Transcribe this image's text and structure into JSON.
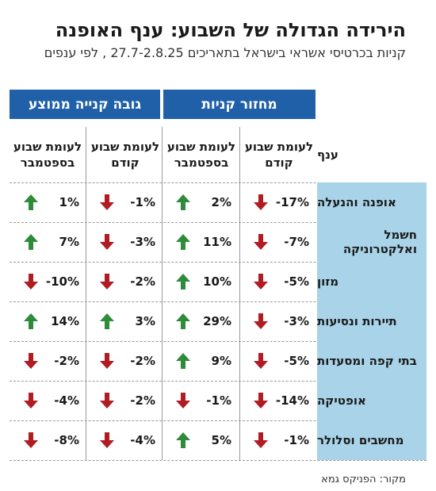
{
  "title": "הירידה הגדולה של השבוע: ענף האופנה",
  "subtitle": "קניות בכרטיסי אשראי בישראל בתאריכים 27.7-2.8.25 , לפי ענפים",
  "groups": {
    "purchase_turnover": "מחזור קניות",
    "avg_purchase": "גובה קנייה ממוצע"
  },
  "columns": {
    "branch": "ענף",
    "vs_prev_week": "לעומת שבוע קודם",
    "vs_sept_week": "לעומת שבוע בספטמבר"
  },
  "colors": {
    "up": "#2e8b3a",
    "down": "#b01c22",
    "header": "#1f60a8",
    "branch_bg": "#a9d3e8"
  },
  "rows": [
    {
      "branch": "אופנה והנעלה",
      "turnover_prev": "-17%",
      "turnover_prev_dir": "down",
      "turnover_sept": "2%",
      "turnover_sept_dir": "up",
      "avg_prev": "-1%",
      "avg_prev_dir": "down",
      "avg_sept": "1%",
      "avg_sept_dir": "up"
    },
    {
      "branch": "חשמל ואלקטרוניקה",
      "turnover_prev": "-7%",
      "turnover_prev_dir": "down",
      "turnover_sept": "11%",
      "turnover_sept_dir": "up",
      "avg_prev": "-3%",
      "avg_prev_dir": "down",
      "avg_sept": "7%",
      "avg_sept_dir": "up"
    },
    {
      "branch": "מזון",
      "turnover_prev": "-5%",
      "turnover_prev_dir": "down",
      "turnover_sept": "10%",
      "turnover_sept_dir": "up",
      "avg_prev": "-2%",
      "avg_prev_dir": "down",
      "avg_sept": "-10%",
      "avg_sept_dir": "down"
    },
    {
      "branch": "תיירות ונסיעות",
      "turnover_prev": "-3%",
      "turnover_prev_dir": "down",
      "turnover_sept": "29%",
      "turnover_sept_dir": "up",
      "avg_prev": "3%",
      "avg_prev_dir": "up",
      "avg_sept": "14%",
      "avg_sept_dir": "up"
    },
    {
      "branch": "בתי קפה ומסעדות",
      "turnover_prev": "-5%",
      "turnover_prev_dir": "down",
      "turnover_sept": "9%",
      "turnover_sept_dir": "up",
      "avg_prev": "-2%",
      "avg_prev_dir": "down",
      "avg_sept": "-2%",
      "avg_sept_dir": "down"
    },
    {
      "branch": "אופטיקה",
      "turnover_prev": "-14%",
      "turnover_prev_dir": "down",
      "turnover_sept": "-1%",
      "turnover_sept_dir": "down",
      "avg_prev": "-2%",
      "avg_prev_dir": "down",
      "avg_sept": "-4%",
      "avg_sept_dir": "down"
    },
    {
      "branch": "מחשבים וסלולר",
      "turnover_prev": "-1%",
      "turnover_prev_dir": "down",
      "turnover_sept": "5%",
      "turnover_sept_dir": "up",
      "avg_prev": "-4%",
      "avg_prev_dir": "down",
      "avg_sept": "-8%",
      "avg_sept_dir": "down"
    }
  ],
  "source": "מקור: הפניקס גמא"
}
